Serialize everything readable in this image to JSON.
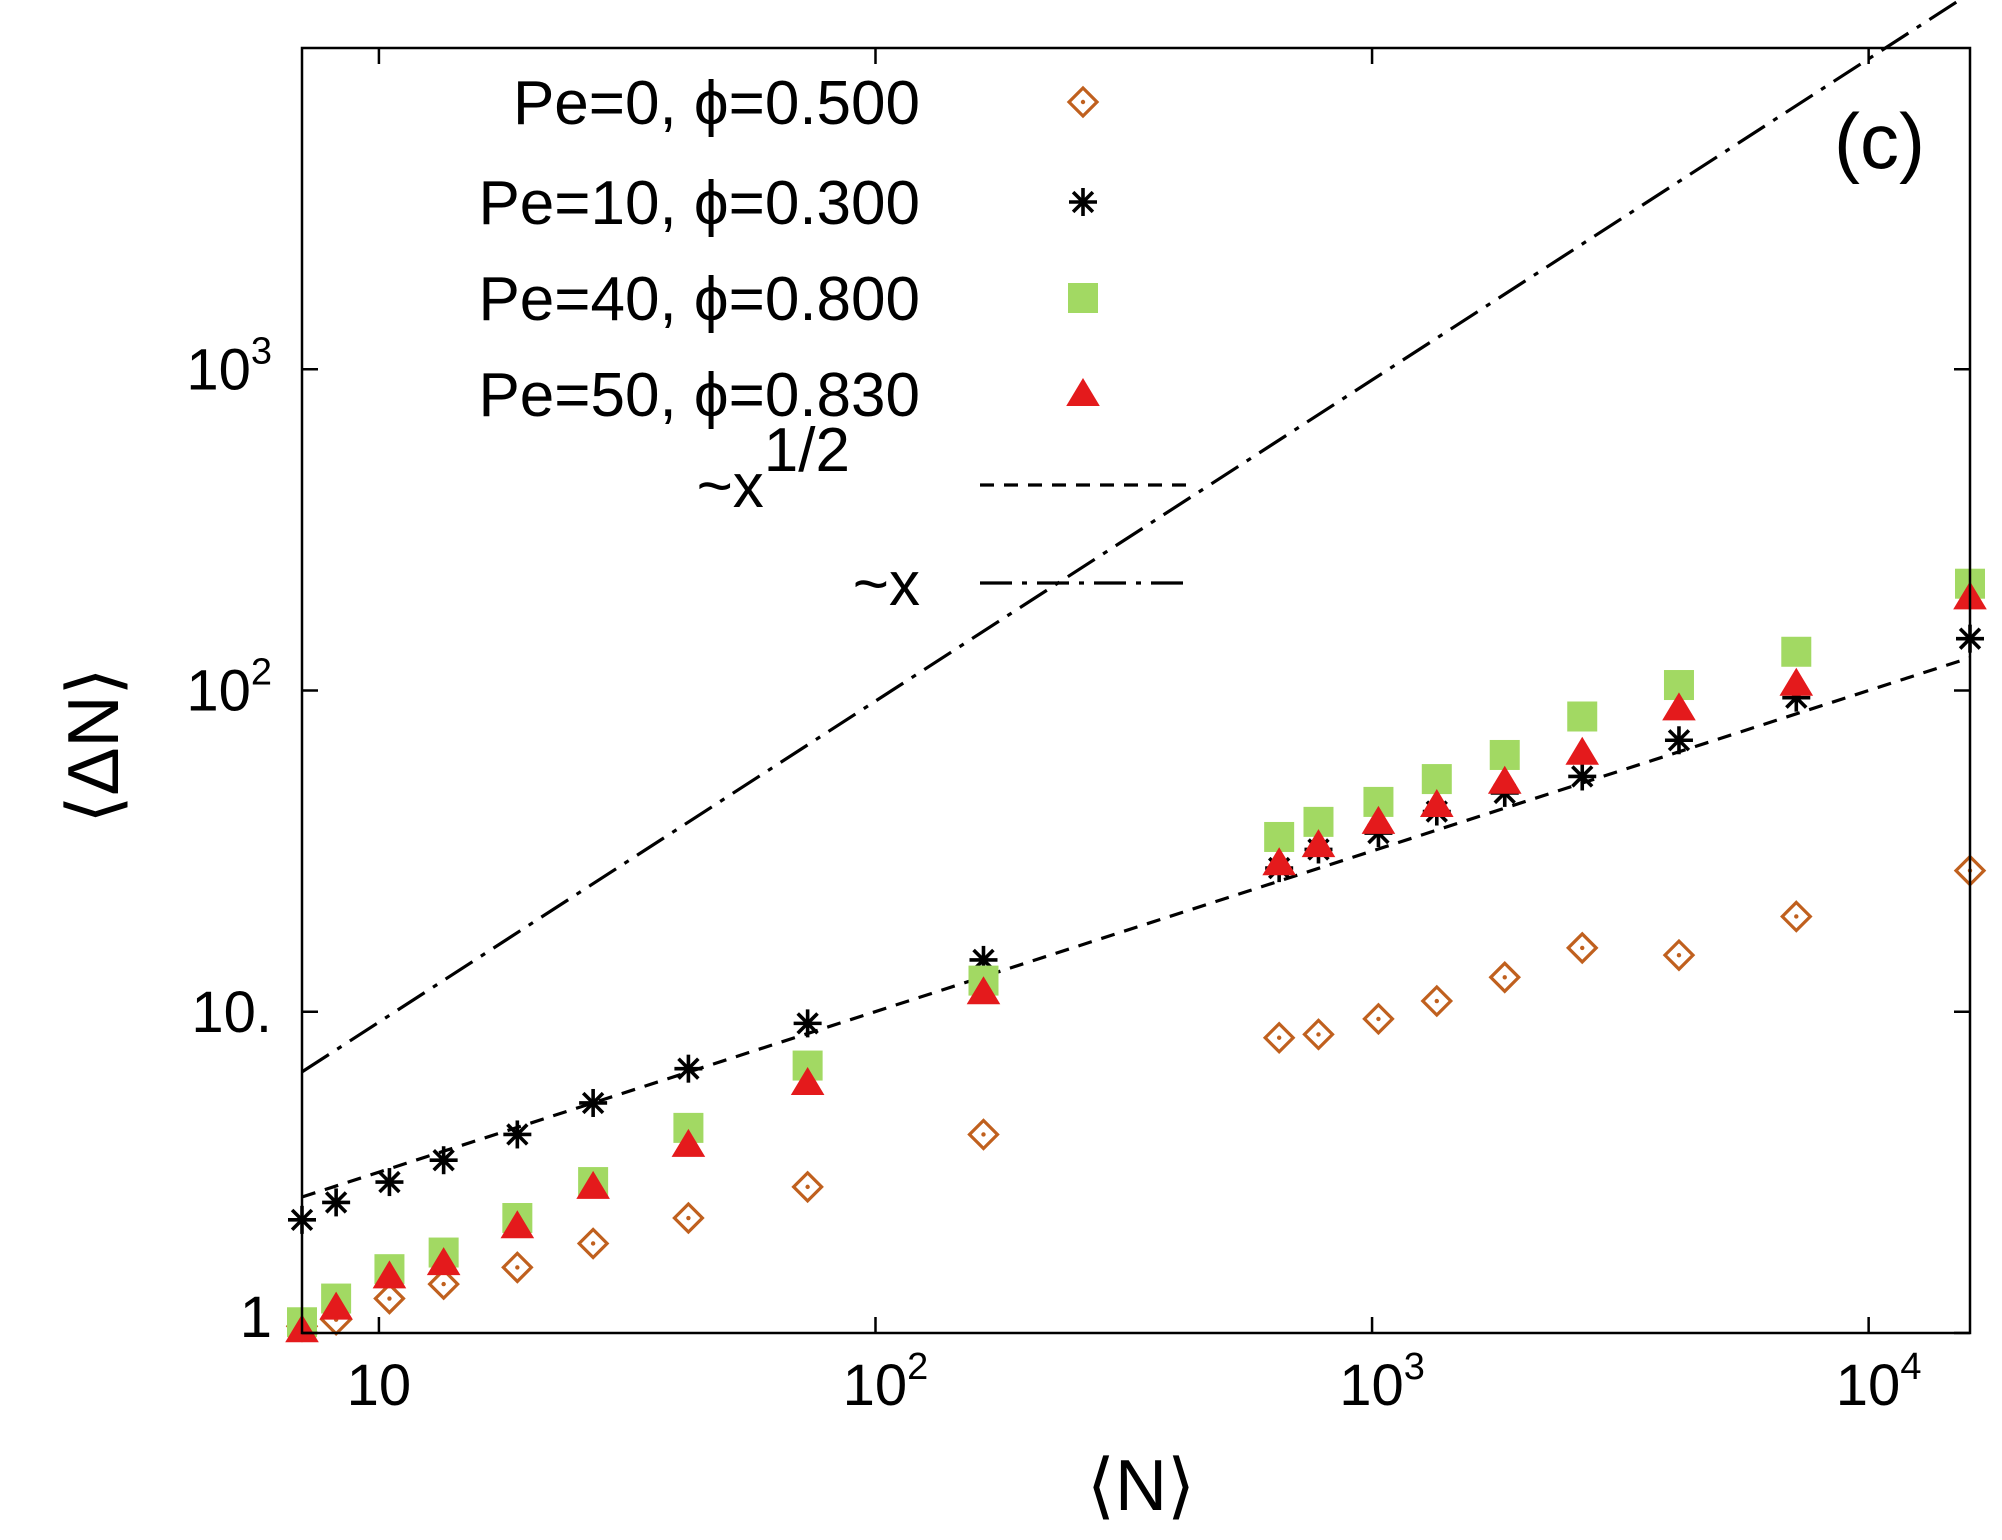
{
  "chart_data": {
    "type": "scatter",
    "scale": "log-log",
    "panel_label": "(c)",
    "xlabel": "⟨N⟩",
    "ylabel": "⟨ΔN⟩",
    "xlim": [
      7,
      16000
    ],
    "ylim": [
      1,
      10000
    ],
    "x_ticks": [
      {
        "value": 10,
        "base": "10",
        "exp": ""
      },
      {
        "value": 100,
        "base": "10",
        "exp": "2"
      },
      {
        "value": 1000,
        "base": "10",
        "exp": "3"
      },
      {
        "value": 10000,
        "base": "10",
        "exp": "4"
      }
    ],
    "y_ticks": [
      {
        "value": 1,
        "base": "1",
        "exp": ""
      },
      {
        "value": 10,
        "base": "10.",
        "exp": ""
      },
      {
        "value": 100,
        "base": "10",
        "exp": "2"
      },
      {
        "value": 1000,
        "base": "10",
        "exp": "3"
      }
    ],
    "series": [
      {
        "name": "Pe=0, ϕ=0.500",
        "marker": "diamond-open-dot",
        "color": "#c0601e",
        "points": [
          [
            7,
            1.05
          ],
          [
            8.2,
            1.1
          ],
          [
            10.5,
            1.28
          ],
          [
            13.5,
            1.42
          ],
          [
            19,
            1.6
          ],
          [
            27,
            1.9
          ],
          [
            42,
            2.28
          ],
          [
            73,
            2.85
          ],
          [
            165,
            4.15
          ],
          [
            650,
            8.3
          ],
          [
            780,
            8.5
          ],
          [
            1030,
            9.5
          ],
          [
            1350,
            10.8
          ],
          [
            1850,
            12.8
          ],
          [
            2650,
            15.8
          ],
          [
            4150,
            15.0
          ],
          [
            7150,
            19.8
          ],
          [
            16000,
            27.5
          ]
        ]
      },
      {
        "name": "Pe=10, ϕ=0.300",
        "marker": "star",
        "color": "#000000",
        "points": [
          [
            7,
            2.25
          ],
          [
            8.2,
            2.55
          ],
          [
            10.5,
            2.95
          ],
          [
            13.5,
            3.45
          ],
          [
            19,
            4.15
          ],
          [
            27,
            5.2
          ],
          [
            42,
            6.65
          ],
          [
            73,
            9.2
          ],
          [
            165,
            14.5
          ],
          [
            650,
            28
          ],
          [
            780,
            32
          ],
          [
            1030,
            36
          ],
          [
            1350,
            42
          ],
          [
            1850,
            48
          ],
          [
            2650,
            54
          ],
          [
            4150,
            70
          ],
          [
            7150,
            95
          ],
          [
            16000,
            145
          ]
        ]
      },
      {
        "name": "Pe=40, ϕ=0.800",
        "marker": "square-filled",
        "color": "#a2d963",
        "points": [
          [
            7,
            1.08
          ],
          [
            8.2,
            1.28
          ],
          [
            10.5,
            1.58
          ],
          [
            13.5,
            1.78
          ],
          [
            19,
            2.28
          ],
          [
            27,
            2.95
          ],
          [
            42,
            4.35
          ],
          [
            73,
            6.8
          ],
          [
            165,
            12.5
          ],
          [
            650,
            35
          ],
          [
            780,
            39
          ],
          [
            1030,
            45
          ],
          [
            1350,
            53
          ],
          [
            1850,
            63
          ],
          [
            2650,
            83
          ],
          [
            4150,
            104
          ],
          [
            7150,
            132
          ],
          [
            16000,
            215
          ]
        ]
      },
      {
        "name": "Pe=50, ϕ=0.830",
        "marker": "triangle-filled",
        "color": "#e41a1c",
        "points": [
          [
            7,
            1.02
          ],
          [
            8.2,
            1.2
          ],
          [
            10.5,
            1.5
          ],
          [
            13.5,
            1.65
          ],
          [
            19,
            2.15
          ],
          [
            27,
            2.85
          ],
          [
            42,
            3.85
          ],
          [
            73,
            6.0
          ],
          [
            165,
            11.5
          ],
          [
            650,
            29
          ],
          [
            780,
            33
          ],
          [
            1030,
            39
          ],
          [
            1350,
            44
          ],
          [
            1850,
            52
          ],
          [
            2650,
            64
          ],
          [
            4150,
            88
          ],
          [
            7150,
            105
          ],
          [
            16000,
            195
          ]
        ]
      }
    ],
    "fits": [
      {
        "name": "~x^{1/2}",
        "label_main": "~x",
        "label_sup": "1/2",
        "style": "dashed",
        "exponent": 0.5,
        "points": [
          [
            7,
            2.65
          ],
          [
            16000,
            126.5
          ]
        ]
      },
      {
        "name": "~x",
        "label_main": "~x",
        "label_sup": "",
        "style": "dash-dot",
        "exponent": 1,
        "points": [
          [
            7,
            6.5
          ],
          [
            16000,
            14800
          ]
        ]
      }
    ]
  }
}
